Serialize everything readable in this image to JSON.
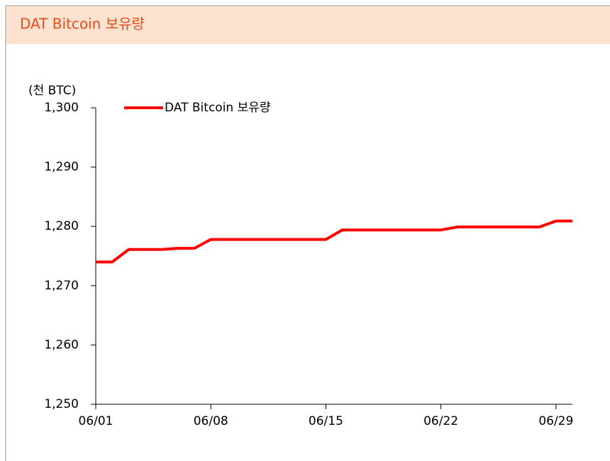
{
  "header": {
    "title": "DAT Bitcoin 보유량"
  },
  "chart_data": {
    "type": "line",
    "y_axis_label": "(천 BTC)",
    "categories": [
      "06/01",
      null,
      null,
      null,
      null,
      null,
      null,
      "06/08",
      null,
      null,
      null,
      null,
      null,
      null,
      "06/15",
      null,
      null,
      null,
      null,
      null,
      null,
      "06/22",
      null,
      null,
      null,
      null,
      null,
      null,
      "06/29",
      null
    ],
    "series": [
      {
        "name": "DAT Bitcoin 보유량",
        "color": "#ff0000",
        "values": [
          1274,
          1274,
          1276.1,
          1276.1,
          1276.1,
          1276.3,
          1276.3,
          1277.8,
          1277.8,
          1277.8,
          1277.8,
          1277.8,
          1277.8,
          1277.8,
          1277.8,
          1279.4,
          1279.4,
          1279.4,
          1279.4,
          1279.4,
          1279.4,
          1279.4,
          1279.9,
          1279.9,
          1279.9,
          1279.9,
          1279.9,
          1279.9,
          1280.9,
          1280.9
        ]
      }
    ],
    "ylim": [
      1250,
      1300
    ],
    "yticks": [
      {
        "value": 1250,
        "label": "1,250"
      },
      {
        "value": 1260,
        "label": "1,260"
      },
      {
        "value": 1270,
        "label": "1,270"
      },
      {
        "value": 1280,
        "label": "1,280"
      },
      {
        "value": 1290,
        "label": "1,290"
      },
      {
        "value": 1300,
        "label": "1,300"
      }
    ],
    "grid": false,
    "legend": "top"
  }
}
